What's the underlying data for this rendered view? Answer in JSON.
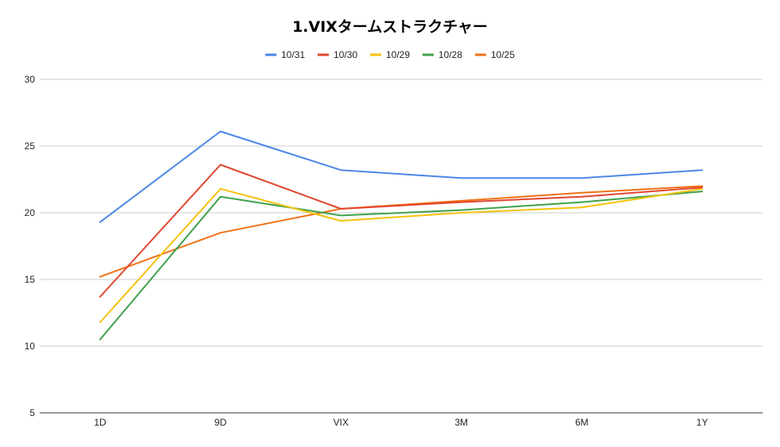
{
  "chart_data": {
    "type": "line",
    "title": "1.VIXタームストラクチャー",
    "xlabel": "",
    "ylabel": "",
    "categories": [
      "1D",
      "9D",
      "VIX",
      "3M",
      "6M",
      "1Y"
    ],
    "ylim": [
      5,
      30
    ],
    "yticks": [
      "30",
      "25",
      "20",
      "15",
      "10",
      "5"
    ],
    "grid": true,
    "legend_position": "top",
    "series": [
      {
        "name": "10/31",
        "color": "#4a86e8",
        "values": [
          19.3,
          26.1,
          23.2,
          22.6,
          22.6,
          23.2
        ]
      },
      {
        "name": "10/30",
        "color": "#e0462f",
        "values": [
          13.7,
          23.6,
          20.3,
          20.8,
          21.2,
          21.9
        ]
      },
      {
        "name": "10/29",
        "color": "#f4c20d",
        "values": [
          11.8,
          21.8,
          19.4,
          20.0,
          20.4,
          21.8
        ]
      },
      {
        "name": "10/28",
        "color": "#3fa14b",
        "values": [
          10.5,
          21.2,
          19.8,
          20.2,
          20.8,
          21.6
        ]
      },
      {
        "name": "10/25",
        "color": "#f07014",
        "values": [
          15.2,
          18.5,
          20.3,
          20.9,
          21.5,
          22.0
        ]
      }
    ]
  }
}
